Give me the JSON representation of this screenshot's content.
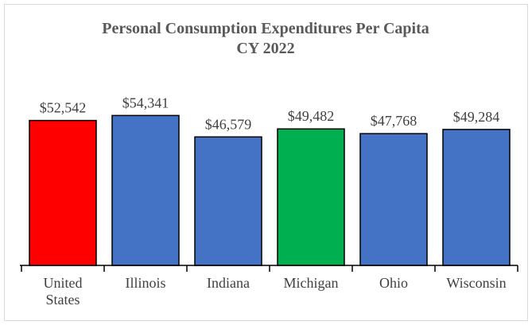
{
  "chart_data": {
    "type": "bar",
    "title": "Personal Consumption Expenditures Per Capita",
    "subtitle": "CY 2022",
    "categories": [
      "United States",
      "Illinois",
      "Indiana",
      "Michigan",
      "Ohio",
      "Wisconsin"
    ],
    "values": [
      52542,
      54341,
      46579,
      49482,
      47768,
      49284
    ],
    "value_labels": [
      "$52,542",
      "$54,341",
      "$46,579",
      "$49,482",
      "$47,768",
      "$49,284"
    ],
    "colors": [
      "#ff0000",
      "#4472c4",
      "#4472c4",
      "#00b050",
      "#4472c4",
      "#4472c4"
    ],
    "ylim": [
      0,
      70000
    ]
  }
}
